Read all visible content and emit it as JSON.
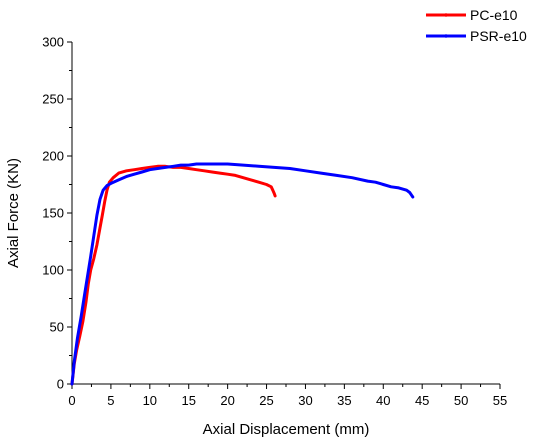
{
  "chart_data": {
    "type": "line",
    "xlabel": "Axial Displacement (mm)",
    "ylabel": "Axial Force (KN)",
    "xlim": [
      0,
      55
    ],
    "ylim": [
      0,
      300
    ],
    "xticks": [
      0,
      5,
      10,
      15,
      20,
      25,
      30,
      35,
      40,
      45,
      50,
      55
    ],
    "yticks": [
      0,
      50,
      100,
      150,
      200,
      250,
      300
    ],
    "grid": false,
    "legend_position": "top-right",
    "series": [
      {
        "name": "PC-e10",
        "color": "#ff0000",
        "points": [
          [
            0,
            0
          ],
          [
            0.3,
            18
          ],
          [
            0.6,
            30
          ],
          [
            1.0,
            42
          ],
          [
            1.4,
            55
          ],
          [
            1.8,
            72
          ],
          [
            2.1,
            88
          ],
          [
            2.4,
            100
          ],
          [
            2.8,
            110
          ],
          [
            3.2,
            122
          ],
          [
            3.6,
            137
          ],
          [
            3.9,
            148
          ],
          [
            4.2,
            160
          ],
          [
            4.5,
            170
          ],
          [
            4.8,
            177
          ],
          [
            5.3,
            181
          ],
          [
            6.0,
            185
          ],
          [
            7.0,
            187
          ],
          [
            8.0,
            188
          ],
          [
            9.0,
            189
          ],
          [
            10.0,
            190
          ],
          [
            11.0,
            191
          ],
          [
            12.0,
            191
          ],
          [
            13.0,
            190
          ],
          [
            14.0,
            190
          ],
          [
            15.0,
            189
          ],
          [
            16.0,
            188
          ],
          [
            17.0,
            187
          ],
          [
            18.0,
            186
          ],
          [
            19.0,
            185
          ],
          [
            20.0,
            184
          ],
          [
            21.0,
            183
          ],
          [
            22.0,
            181
          ],
          [
            23.0,
            179
          ],
          [
            24.0,
            177
          ],
          [
            25.0,
            175
          ],
          [
            25.6,
            173
          ],
          [
            25.8,
            170
          ],
          [
            26.0,
            167
          ],
          [
            26.1,
            165
          ]
        ]
      },
      {
        "name": "PSR-e10",
        "color": "#0000ff",
        "points": [
          [
            0,
            0
          ],
          [
            0.3,
            20
          ],
          [
            0.7,
            40
          ],
          [
            1.2,
            60
          ],
          [
            1.6,
            78
          ],
          [
            2.0,
            95
          ],
          [
            2.4,
            112
          ],
          [
            2.8,
            130
          ],
          [
            3.2,
            148
          ],
          [
            3.6,
            162
          ],
          [
            4.0,
            170
          ],
          [
            4.5,
            174
          ],
          [
            5.0,
            176
          ],
          [
            6.0,
            179
          ],
          [
            7.0,
            182
          ],
          [
            8.0,
            184
          ],
          [
            9.0,
            186
          ],
          [
            10.0,
            188
          ],
          [
            11.0,
            189
          ],
          [
            12.0,
            190
          ],
          [
            13.0,
            191
          ],
          [
            14.0,
            192
          ],
          [
            15.0,
            192
          ],
          [
            16.0,
            193
          ],
          [
            18.0,
            193
          ],
          [
            20.0,
            193
          ],
          [
            22.0,
            192
          ],
          [
            24.0,
            191
          ],
          [
            26.0,
            190
          ],
          [
            28.0,
            189
          ],
          [
            30.0,
            187
          ],
          [
            32.0,
            185
          ],
          [
            34.0,
            183
          ],
          [
            36.0,
            181
          ],
          [
            38.0,
            178
          ],
          [
            39.0,
            177
          ],
          [
            40.0,
            175
          ],
          [
            41.0,
            173
          ],
          [
            42.0,
            172
          ],
          [
            43.0,
            170
          ],
          [
            43.4,
            168
          ],
          [
            43.6,
            166
          ],
          [
            43.8,
            164
          ]
        ]
      }
    ]
  }
}
